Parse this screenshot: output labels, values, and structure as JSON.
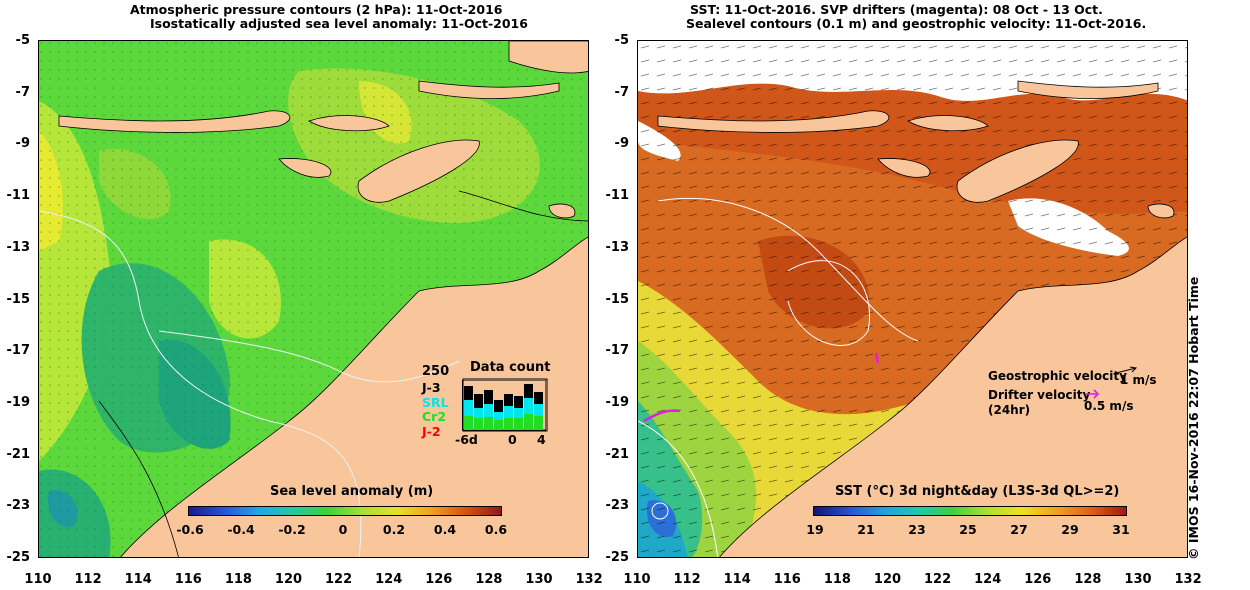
{
  "left_panel": {
    "title_line1": "Atmospheric pressure contours (2 hPa): 11-Oct-2016",
    "title_line2": "Isostatically adjusted sea level anomaly: 11-Oct-2016",
    "colorbar_title": "Sea level anomaly (m)",
    "colorbar_ticks": [
      "-0.6",
      "-0.4",
      "-0.2",
      "0",
      "0.2",
      "0.4",
      "0.6"
    ],
    "data_count": {
      "title": "Data count",
      "max": "250",
      "missions": [
        {
          "name": "J-3",
          "color": "#000000"
        },
        {
          "name": "SRL",
          "color": "#00e5ee"
        },
        {
          "name": "Cr2",
          "color": "#22dd22"
        },
        {
          "name": "J-2",
          "color": "#ff0000"
        }
      ],
      "x_left": "-6d",
      "x_mid": "0",
      "x_right": "4"
    }
  },
  "right_panel": {
    "title_line1": "SST: 11-Oct-2016. SVP drifters (magenta): 08 Oct - 13 Oct.",
    "title_line2": "Sealevel contours (0.1 m) and geostrophic velocity: 11-Oct-2016.",
    "colorbar_title": "SST (°C) 3d night&day (L3S-3d QL>=2)",
    "colorbar_ticks": [
      "19",
      "21",
      "23",
      "25",
      "27",
      "29",
      "31"
    ],
    "geostrophic_label": "Geostrophic velocity",
    "geostrophic_value": "1 m/s",
    "drifter_label": "Drifter velocity",
    "drifter_sub": "(24hr)",
    "drifter_value": "0.5 m/s"
  },
  "axes": {
    "y_ticks": [
      "-5",
      "-7",
      "-9",
      "-11",
      "-13",
      "-15",
      "-17",
      "-19",
      "-21",
      "-23",
      "-25"
    ],
    "x_ticks": [
      "110",
      "112",
      "114",
      "116",
      "118",
      "120",
      "122",
      "124",
      "126",
      "128",
      "130",
      "132"
    ]
  },
  "credit": "© IMOS 16-Nov-2016 22:07 Hobart Time",
  "colors": {
    "land": "#f9c59b",
    "sla_base": "#4bd23a",
    "sst_base": "#d8601e"
  }
}
